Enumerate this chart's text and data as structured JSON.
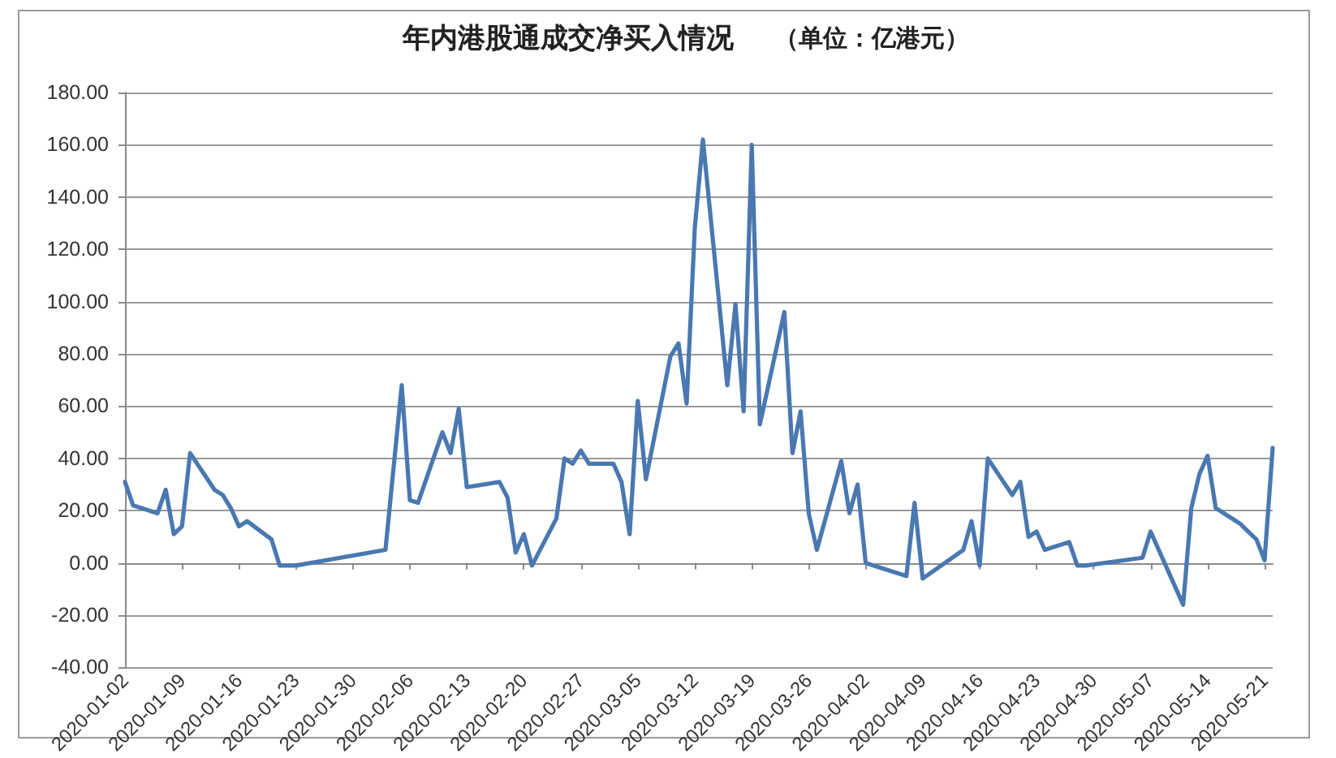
{
  "chart_data": {
    "type": "line",
    "title": "年内港股通成交净买入情况",
    "subtitle": "（单位：亿港元）",
    "x": [
      "2020-01-02",
      "2020-01-03",
      "2020-01-06",
      "2020-01-07",
      "2020-01-08",
      "2020-01-09",
      "2020-01-10",
      "2020-01-13",
      "2020-01-14",
      "2020-01-15",
      "2020-01-16",
      "2020-01-17",
      "2020-01-20",
      "2020-01-21",
      "2020-01-22",
      "2020-01-23",
      "2020-02-03",
      "2020-02-05",
      "2020-02-06",
      "2020-02-07",
      "2020-02-10",
      "2020-02-11",
      "2020-02-12",
      "2020-02-13",
      "2020-02-17",
      "2020-02-18",
      "2020-02-19",
      "2020-02-20",
      "2020-02-21",
      "2020-02-24",
      "2020-02-25",
      "2020-02-26",
      "2020-02-27",
      "2020-02-28",
      "2020-03-02",
      "2020-03-03",
      "2020-03-04",
      "2020-03-05",
      "2020-03-06",
      "2020-03-09",
      "2020-03-10",
      "2020-03-11",
      "2020-03-12",
      "2020-03-13",
      "2020-03-16",
      "2020-03-17",
      "2020-03-18",
      "2020-03-19",
      "2020-03-20",
      "2020-03-23",
      "2020-03-24",
      "2020-03-25",
      "2020-03-26",
      "2020-03-27",
      "2020-03-30",
      "2020-03-31",
      "2020-04-01",
      "2020-04-02",
      "2020-04-07",
      "2020-04-08",
      "2020-04-09",
      "2020-04-14",
      "2020-04-15",
      "2020-04-16",
      "2020-04-17",
      "2020-04-20",
      "2020-04-21",
      "2020-04-22",
      "2020-04-23",
      "2020-04-24",
      "2020-04-27",
      "2020-04-28",
      "2020-04-29",
      "2020-05-06",
      "2020-05-07",
      "2020-05-11",
      "2020-05-12",
      "2020-05-13",
      "2020-05-14",
      "2020-05-15",
      "2020-05-18",
      "2020-05-19",
      "2020-05-20",
      "2020-05-21",
      "2020-05-22"
    ],
    "values": [
      31,
      22,
      19,
      28,
      11,
      14,
      42,
      28,
      26,
      21,
      14,
      16,
      9,
      -1,
      -1,
      -1,
      5,
      68,
      24,
      23,
      50,
      42,
      59,
      29,
      31,
      25,
      4,
      11,
      -1,
      17,
      40,
      38,
      43,
      38,
      38,
      31,
      11,
      62,
      32,
      79,
      84,
      61,
      128,
      162,
      68,
      99,
      58,
      160,
      53,
      96,
      42,
      58,
      19,
      5,
      39,
      19,
      30,
      0,
      -5,
      23,
      -6,
      5,
      16,
      -1,
      40,
      26,
      31,
      10,
      12,
      5,
      8,
      -1,
      -1,
      2,
      12,
      -16,
      21,
      34,
      41,
      21,
      15,
      12,
      9,
      1,
      44
    ],
    "color": "#4a78b0",
    "marker": "none",
    "xlim": [
      "2020-01-02",
      "2020-05-22"
    ],
    "xticks": [
      "2020-01-02",
      "2020-01-09",
      "2020-01-16",
      "2020-01-23",
      "2020-01-30",
      "2020-02-06",
      "2020-02-13",
      "2020-02-20",
      "2020-02-27",
      "2020-03-05",
      "2020-03-12",
      "2020-03-19",
      "2020-03-26",
      "2020-04-02",
      "2020-04-09",
      "2020-04-16",
      "2020-04-23",
      "2020-04-30",
      "2020-05-07",
      "2020-05-14",
      "2020-05-21"
    ],
    "ylim": [
      -40,
      180
    ],
    "yticks": [
      {
        "value": -40,
        "label": "-40.00"
      },
      {
        "value": -20,
        "label": "-20.00"
      },
      {
        "value": 0,
        "label": "0.00"
      },
      {
        "value": 20,
        "label": "20.00"
      },
      {
        "value": 40,
        "label": "40.00"
      },
      {
        "value": 60,
        "label": "60.00"
      },
      {
        "value": 80,
        "label": "80.00"
      },
      {
        "value": 100,
        "label": "100.00"
      },
      {
        "value": 120,
        "label": "120.00"
      },
      {
        "value": 140,
        "label": "140.00"
      },
      {
        "value": 160,
        "label": "160.00"
      },
      {
        "value": 180,
        "label": "180.00"
      }
    ],
    "grid": "y"
  }
}
